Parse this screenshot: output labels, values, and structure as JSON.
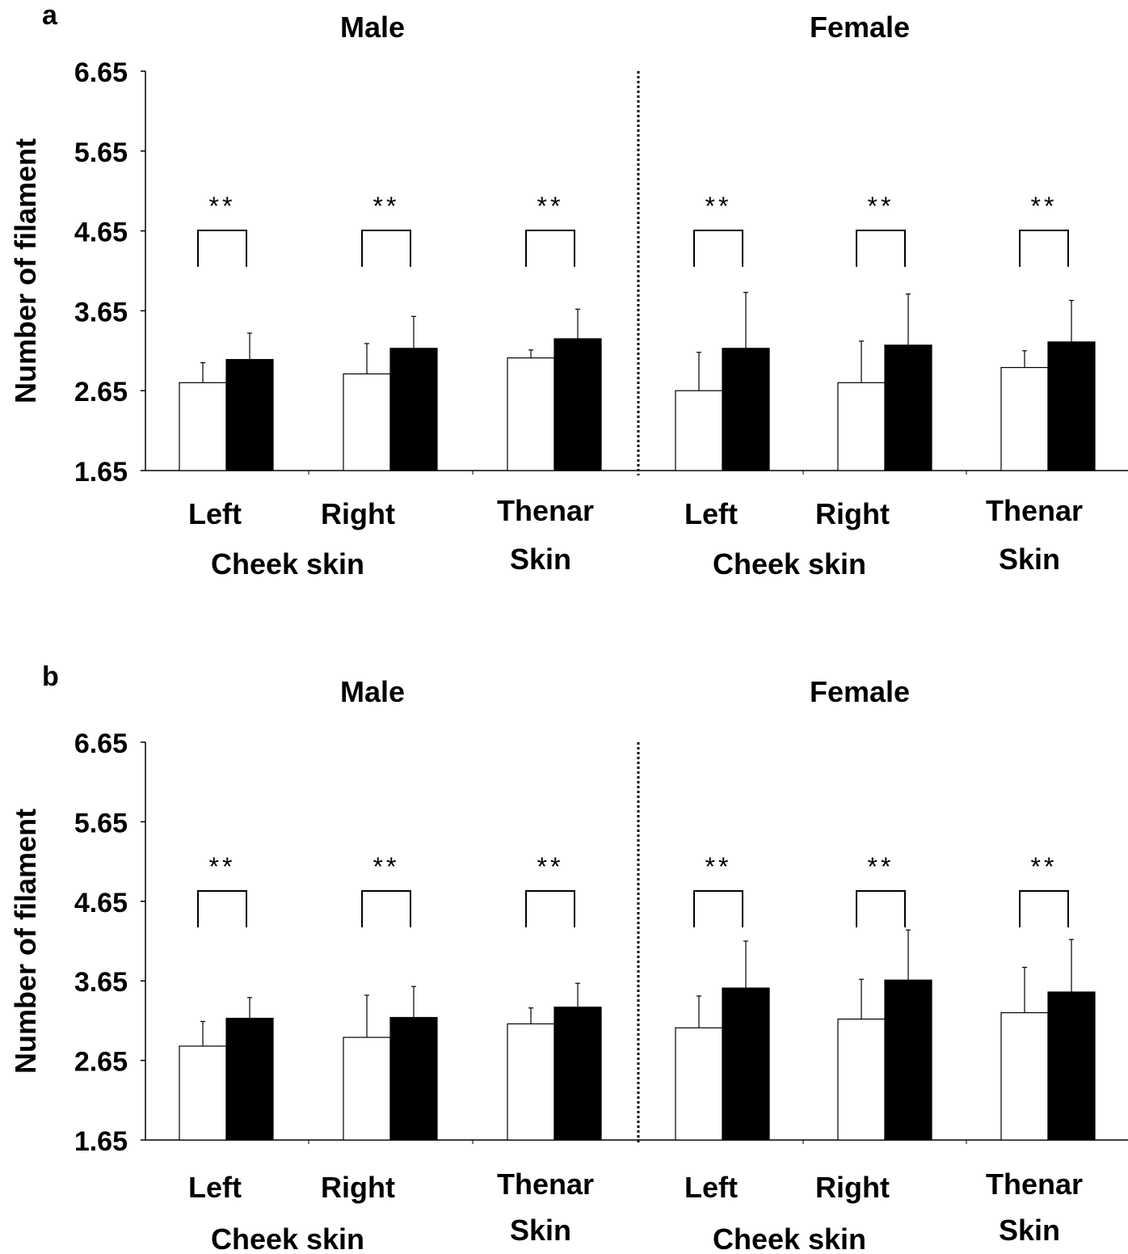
{
  "chart_data": [
    {
      "type": "bar",
      "panel_label": "a",
      "ylabel": "Number of filament",
      "ylim": [
        1.65,
        6.65
      ],
      "yticks": [
        "1.65",
        "2.65",
        "3.65",
        "4.65",
        "5.65",
        "6.65"
      ],
      "groups": [
        {
          "title": "Male",
          "categories": [
            {
              "line1": "Left",
              "line2": ""
            },
            {
              "line1": "Right",
              "line2": ""
            },
            {
              "line1": "Thenar",
              "line2": "Skin"
            }
          ],
          "subtitle": "Cheek skin",
          "series": [
            {
              "color": "#ffffff",
              "values": [
                2.75,
                2.86,
                3.06
              ],
              "errors": [
                0.25,
                0.38,
                0.1
              ]
            },
            {
              "color": "#000000",
              "values": [
                3.04,
                3.18,
                3.3
              ],
              "errors": [
                0.33,
                0.4,
                0.37
              ]
            }
          ],
          "significance": [
            "**",
            "**",
            "**"
          ]
        },
        {
          "title": "Female",
          "categories": [
            {
              "line1": "Left",
              "line2": ""
            },
            {
              "line1": "Right",
              "line2": ""
            },
            {
              "line1": "Thenar",
              "line2": "Skin"
            }
          ],
          "subtitle": "Cheek skin",
          "series": [
            {
              "color": "#ffffff",
              "values": [
                2.65,
                2.75,
                2.94
              ],
              "errors": [
                0.48,
                0.52,
                0.21
              ]
            },
            {
              "color": "#000000",
              "values": [
                3.18,
                3.22,
                3.26
              ],
              "errors": [
                0.7,
                0.64,
                0.52
              ]
            }
          ],
          "significance": [
            "**",
            "**",
            "**"
          ]
        }
      ]
    },
    {
      "type": "bar",
      "panel_label": "b",
      "ylabel": "Number of filament",
      "ylim": [
        1.65,
        6.65
      ],
      "yticks": [
        "1.65",
        "2.65",
        "3.65",
        "4.65",
        "5.65",
        "6.65"
      ],
      "groups": [
        {
          "title": "Male",
          "categories": [
            {
              "line1": "Left",
              "line2": ""
            },
            {
              "line1": "Right",
              "line2": ""
            },
            {
              "line1": "Thenar",
              "line2": "Skin"
            }
          ],
          "subtitle": "Cheek skin",
          "series": [
            {
              "color": "#ffffff",
              "values": [
                2.83,
                2.94,
                3.11
              ],
              "errors": [
                0.31,
                0.53,
                0.2
              ]
            },
            {
              "color": "#000000",
              "values": [
                3.18,
                3.19,
                3.32
              ],
              "errors": [
                0.26,
                0.39,
                0.3
              ]
            }
          ],
          "significance": [
            "**",
            "**",
            "**"
          ]
        },
        {
          "title": "Female",
          "categories": [
            {
              "line1": "Left",
              "line2": ""
            },
            {
              "line1": "Right",
              "line2": ""
            },
            {
              "line1": "Thenar",
              "line2": "Skin"
            }
          ],
          "subtitle": "Cheek skin",
          "series": [
            {
              "color": "#ffffff",
              "values": [
                3.06,
                3.17,
                3.25
              ],
              "errors": [
                0.4,
                0.5,
                0.57
              ]
            },
            {
              "color": "#000000",
              "values": [
                3.56,
                3.66,
                3.51
              ],
              "errors": [
                0.59,
                0.63,
                0.66
              ]
            }
          ],
          "significance": [
            "**",
            "**",
            "**"
          ]
        }
      ]
    }
  ]
}
